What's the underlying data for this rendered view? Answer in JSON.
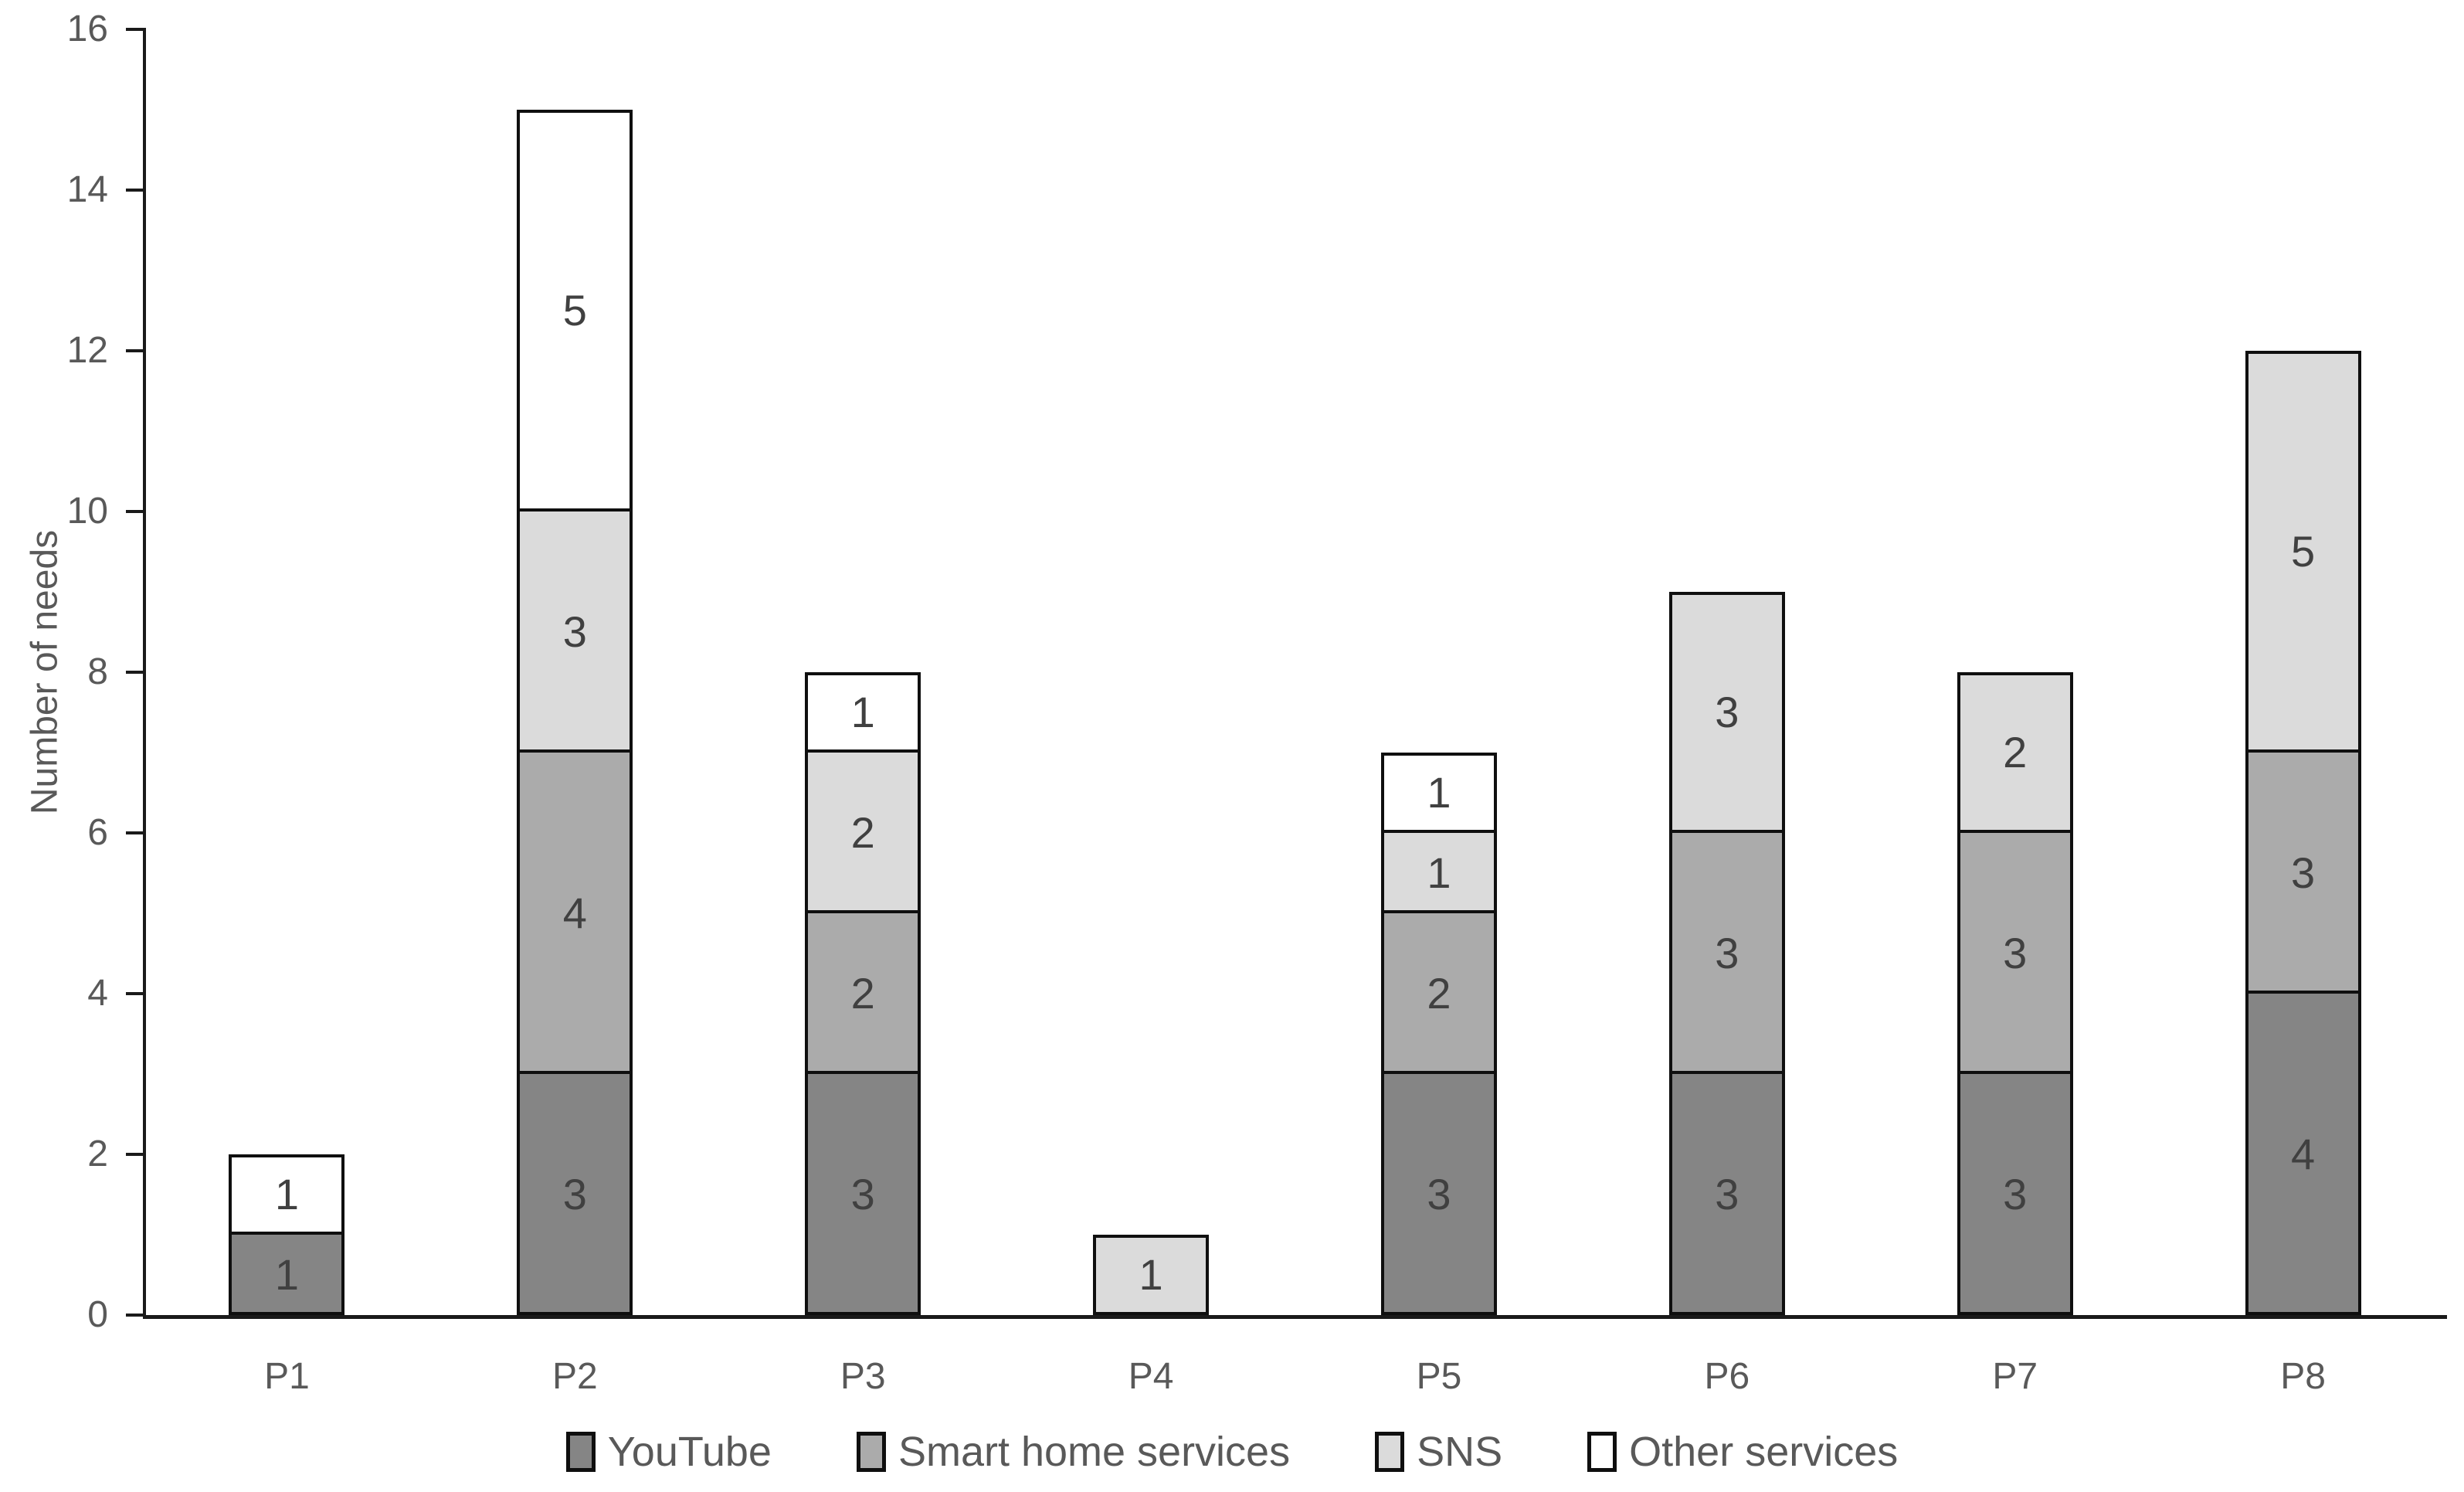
{
  "chart_data": {
    "type": "bar",
    "stacked": true,
    "title": "",
    "xlabel": "",
    "ylabel": "Number of needs",
    "ylim": [
      0,
      16
    ],
    "yticks": [
      0,
      2,
      4,
      6,
      8,
      10,
      12,
      14,
      16
    ],
    "grid": false,
    "legend_position": "bottom",
    "categories": [
      "P1",
      "P2",
      "P3",
      "P4",
      "P5",
      "P6",
      "P7",
      "P8"
    ],
    "series": [
      {
        "name": "YouTube",
        "color": "#858585",
        "values": [
          1,
          3,
          3,
          0,
          3,
          3,
          3,
          4
        ]
      },
      {
        "name": "Smart home services",
        "color": "#ababab",
        "values": [
          0,
          4,
          2,
          0,
          2,
          3,
          3,
          3
        ]
      },
      {
        "name": "SNS",
        "color": "#dbdbdb",
        "values": [
          0,
          3,
          2,
          1,
          1,
          3,
          2,
          5
        ]
      },
      {
        "name": "Other services",
        "color": "#ffffff",
        "values": [
          1,
          5,
          1,
          0,
          1,
          0,
          0,
          0
        ]
      }
    ],
    "bar_totals": [
      2,
      15,
      8,
      1,
      7,
      9,
      8,
      12
    ],
    "segment_labels_shown": true,
    "colors": {
      "axis_line": "#1a1a1a",
      "segment_border": "#0f0f0f",
      "segment_label": "#404040",
      "axis_text": "#595959"
    }
  }
}
